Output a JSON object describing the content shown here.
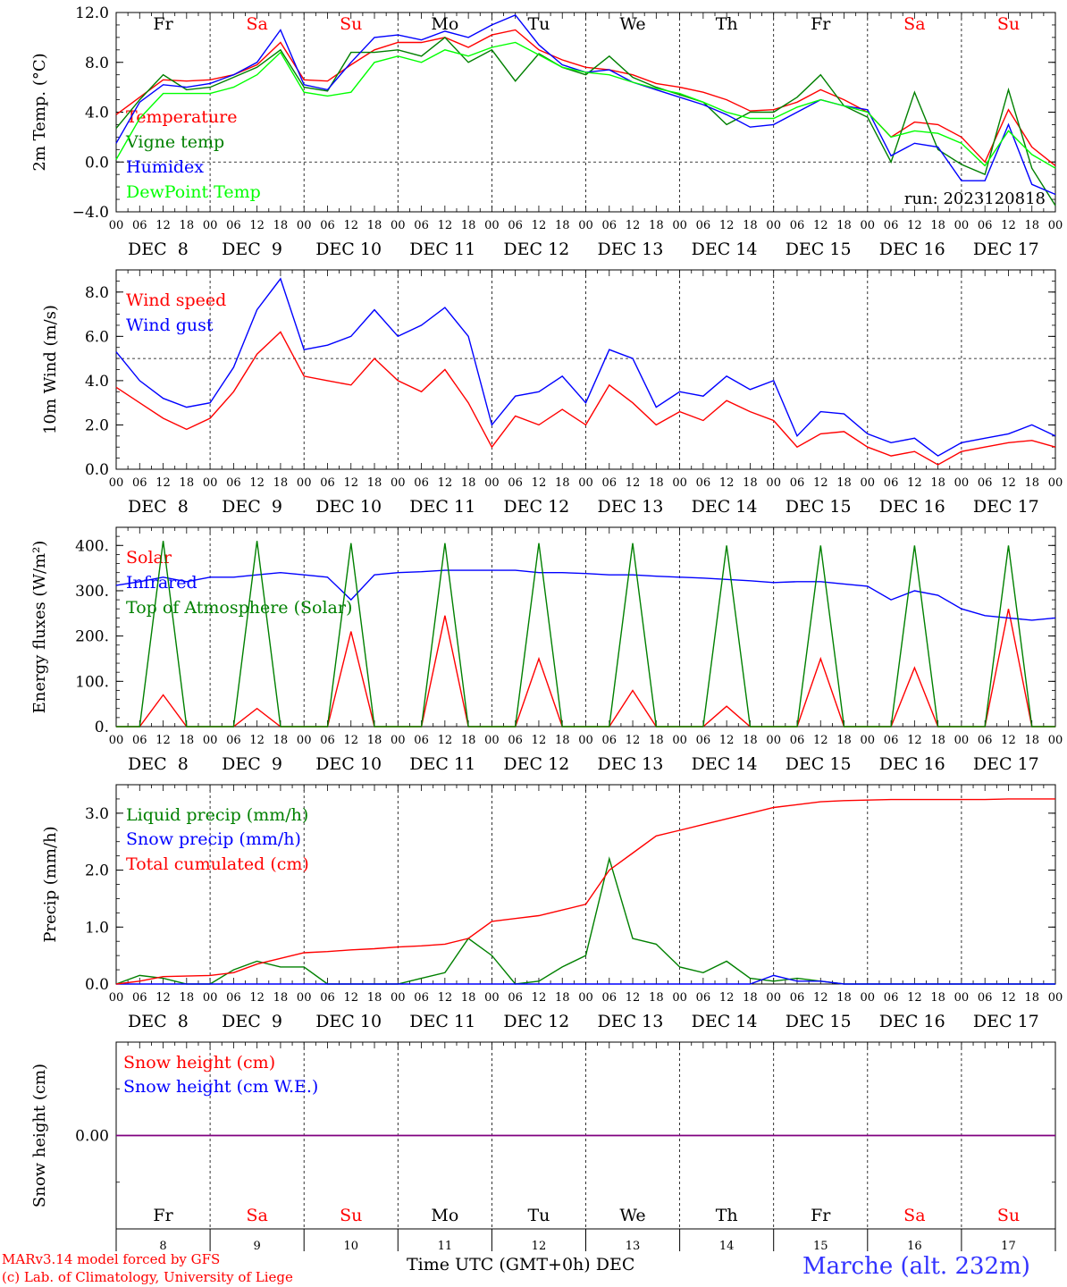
{
  "run_label": "run: 2023120818",
  "days": {
    "labels": [
      "Fr",
      "Sa",
      "Su",
      "Mo",
      "Tu",
      "We",
      "Th",
      "Fr",
      "Sa",
      "Su"
    ],
    "dates": [
      "DEC  8",
      "DEC  9",
      "DEC 10",
      "DEC 11",
      "DEC 12",
      "DEC 13",
      "DEC 14",
      "DEC 15",
      "DEC 16",
      "DEC 17"
    ],
    "numbers": [
      "8",
      "9",
      "10",
      "11",
      "12",
      "13",
      "14",
      "15",
      "16",
      "17"
    ],
    "weekend_color": "#ff0000",
    "weekday_color": "#000000",
    "hour_ticks": [
      "00",
      "06",
      "12",
      "18"
    ],
    "end_tick": "00"
  },
  "chart_data": [
    {
      "type": "line",
      "id": "temperature",
      "ylabel": "2m Temp. (°C)",
      "ylim": [
        -4,
        12
      ],
      "yticks": [
        "12.0",
        "8.0",
        "4.0",
        "0.0",
        "−4.0"
      ],
      "ytick_values": [
        12,
        8,
        4,
        0,
        -4
      ],
      "reference_line": 0,
      "x": [
        0,
        6,
        12,
        18,
        24,
        30,
        36,
        42,
        48,
        54,
        60,
        66,
        72,
        78,
        84,
        90,
        96,
        102,
        108,
        114,
        120,
        126,
        132,
        138,
        144,
        150,
        156,
        162,
        168,
        174,
        180,
        186,
        192,
        198,
        204,
        210,
        216,
        222,
        228,
        234,
        240
      ],
      "series": [
        {
          "name": "Temperature",
          "color": "#ff0000",
          "values": [
            3.8,
            5.2,
            6.6,
            6.5,
            6.6,
            7.0,
            7.8,
            9.6,
            6.6,
            6.5,
            7.8,
            9.0,
            9.6,
            9.6,
            10.0,
            9.2,
            10.2,
            10.6,
            9.0,
            8.2,
            7.6,
            7.4,
            7.0,
            6.3,
            6.0,
            5.6,
            5.0,
            4.1,
            4.2,
            4.8,
            5.8,
            5.0,
            4.0,
            2.0,
            3.2,
            3.0,
            2.0,
            0.0,
            4.2,
            1.2,
            -0.3
          ]
        },
        {
          "name": "Vigne temp",
          "color": "#008000",
          "values": [
            2.7,
            5.0,
            7.0,
            5.8,
            6.0,
            6.8,
            7.6,
            9.0,
            6.0,
            5.7,
            8.8,
            8.8,
            9.0,
            8.5,
            10.0,
            8.0,
            9.0,
            6.5,
            8.7,
            7.6,
            7.0,
            8.5,
            6.8,
            6.0,
            5.4,
            4.8,
            3.0,
            4.0,
            4.0,
            5.2,
            7.0,
            4.5,
            3.6,
            0.0,
            5.6,
            1.0,
            -0.2,
            -1.0,
            5.8,
            -0.5,
            -3.5
          ]
        },
        {
          "name": "Humidex",
          "color": "#0000ff",
          "values": [
            1.5,
            4.8,
            6.2,
            6.0,
            6.3,
            7.0,
            8.0,
            10.6,
            6.2,
            5.8,
            8.0,
            10.0,
            10.2,
            9.8,
            10.5,
            10.0,
            11.0,
            11.8,
            9.4,
            7.8,
            7.2,
            7.4,
            6.4,
            5.8,
            5.2,
            4.6,
            3.8,
            2.8,
            3.0,
            4.0,
            5.0,
            4.5,
            4.2,
            0.5,
            1.5,
            1.2,
            -1.5,
            -1.5,
            3.0,
            -1.8,
            -2.6
          ]
        },
        {
          "name": "DewPoint Temp",
          "color": "#00ff00",
          "values": [
            0.2,
            3.5,
            5.5,
            5.5,
            5.5,
            6.0,
            7.0,
            8.8,
            5.6,
            5.3,
            5.6,
            8.0,
            8.5,
            8.0,
            9.0,
            8.5,
            9.2,
            9.6,
            8.6,
            7.6,
            7.2,
            7.0,
            6.4,
            5.9,
            5.5,
            4.8,
            4.0,
            3.5,
            3.5,
            4.4,
            5.0,
            4.5,
            4.0,
            2.0,
            2.5,
            2.3,
            1.5,
            -0.3,
            2.5,
            0.6,
            -0.5
          ]
        }
      ]
    },
    {
      "type": "line",
      "id": "wind",
      "ylabel": "10m Wind (m/s)",
      "ylim": [
        0,
        9
      ],
      "yticks": [
        "8.0",
        "6.0",
        "4.0",
        "2.0",
        "0.0"
      ],
      "ytick_values": [
        8,
        6,
        4,
        2,
        0
      ],
      "reference_line": 5,
      "x": [
        0,
        6,
        12,
        18,
        24,
        30,
        36,
        42,
        48,
        54,
        60,
        66,
        72,
        78,
        84,
        90,
        96,
        102,
        108,
        114,
        120,
        126,
        132,
        138,
        144,
        150,
        156,
        162,
        168,
        174,
        180,
        186,
        192,
        198,
        204,
        210,
        216,
        222,
        228,
        234,
        240
      ],
      "series": [
        {
          "name": "Wind speed",
          "color": "#ff0000",
          "values": [
            3.7,
            3.0,
            2.3,
            1.8,
            2.3,
            3.5,
            5.2,
            6.2,
            4.2,
            4.0,
            3.8,
            5.0,
            4.0,
            3.5,
            4.5,
            3.0,
            1.0,
            2.4,
            2.0,
            2.7,
            2.0,
            3.8,
            3.0,
            2.0,
            2.6,
            2.2,
            3.1,
            2.6,
            2.2,
            1.0,
            1.6,
            1.7,
            1.0,
            0.6,
            0.8,
            0.2,
            0.8,
            1.0,
            1.2,
            1.3,
            1.0
          ]
        },
        {
          "name": "Wind gust",
          "color": "#0000ff",
          "values": [
            5.3,
            4.0,
            3.2,
            2.8,
            3.0,
            4.6,
            7.2,
            8.6,
            5.4,
            5.6,
            6.0,
            7.2,
            6.0,
            6.5,
            7.3,
            6.0,
            2.0,
            3.3,
            3.5,
            4.2,
            3.0,
            5.4,
            5.0,
            2.8,
            3.5,
            3.3,
            4.2,
            3.6,
            4.0,
            1.5,
            2.6,
            2.5,
            1.6,
            1.2,
            1.4,
            0.6,
            1.2,
            1.4,
            1.6,
            2.0,
            1.5
          ]
        }
      ]
    },
    {
      "type": "line",
      "id": "energy",
      "ylabel": "Energy fluxes (W/m²)",
      "ylim": [
        0,
        440
      ],
      "yticks": [
        "400.",
        "300.",
        "200.",
        "100.",
        "0."
      ],
      "ytick_values": [
        400,
        300,
        200,
        100,
        0
      ],
      "x": [
        0,
        6,
        12,
        18,
        24,
        30,
        36,
        42,
        48,
        54,
        60,
        66,
        72,
        78,
        84,
        90,
        96,
        102,
        108,
        114,
        120,
        126,
        132,
        138,
        144,
        150,
        156,
        162,
        168,
        174,
        180,
        186,
        192,
        198,
        204,
        210,
        216,
        222,
        228,
        234,
        240
      ],
      "series": [
        {
          "name": "Solar",
          "color": "#ff0000",
          "values": [
            0,
            0,
            70,
            0,
            0,
            0,
            40,
            0,
            0,
            0,
            210,
            0,
            0,
            0,
            245,
            0,
            0,
            0,
            150,
            0,
            0,
            0,
            80,
            0,
            0,
            0,
            45,
            0,
            0,
            0,
            150,
            0,
            0,
            0,
            130,
            0,
            0,
            0,
            260,
            0,
            0
          ]
        },
        {
          "name": "Infrared",
          "color": "#0000ff",
          "values": [
            312,
            320,
            330,
            320,
            330,
            330,
            335,
            340,
            335,
            330,
            280,
            335,
            340,
            342,
            345,
            345,
            345,
            345,
            340,
            340,
            338,
            335,
            335,
            332,
            330,
            328,
            325,
            322,
            318,
            320,
            320,
            315,
            310,
            280,
            300,
            290,
            260,
            245,
            240,
            235,
            240
          ]
        },
        {
          "name": "Top of Atmosphere (Solar)",
          "color": "#008000",
          "values": [
            0,
            0,
            410,
            0,
            0,
            0,
            410,
            0,
            0,
            0,
            405,
            0,
            0,
            0,
            405,
            0,
            0,
            0,
            405,
            0,
            0,
            0,
            405,
            0,
            0,
            0,
            400,
            0,
            0,
            0,
            400,
            0,
            0,
            0,
            400,
            0,
            0,
            0,
            400,
            0,
            0
          ]
        }
      ]
    },
    {
      "type": "line",
      "id": "precip",
      "ylabel": "Precip (mm/h)",
      "ylim": [
        0,
        3.5
      ],
      "yticks": [
        "3.0",
        "2.0",
        "1.0",
        "0.0"
      ],
      "ytick_values": [
        3,
        2,
        1,
        0
      ],
      "x": [
        0,
        6,
        12,
        18,
        24,
        30,
        36,
        42,
        48,
        54,
        60,
        66,
        72,
        78,
        84,
        90,
        96,
        102,
        108,
        114,
        120,
        126,
        132,
        138,
        144,
        150,
        156,
        162,
        168,
        174,
        180,
        186,
        192,
        198,
        204,
        210,
        216,
        222,
        228,
        234,
        240
      ],
      "series": [
        {
          "name": "Liquid precip (mm/h)",
          "color": "#008000",
          "values": [
            0,
            0.15,
            0.1,
            0,
            0,
            0.25,
            0.4,
            0.3,
            0.3,
            0,
            0,
            0,
            0,
            0.1,
            0.2,
            0.8,
            0.5,
            0,
            0.05,
            0.3,
            0.5,
            2.2,
            0.8,
            0.7,
            0.3,
            0.2,
            0.4,
            0.1,
            0.05,
            0.1,
            0.05,
            0,
            0,
            0,
            0,
            0,
            0,
            0,
            0,
            0,
            0
          ]
        },
        {
          "name": "Snow precip (mm/h)",
          "color": "#0000ff",
          "values": [
            0,
            0,
            0,
            0,
            0,
            0,
            0,
            0,
            0,
            0,
            0,
            0,
            0,
            0,
            0,
            0,
            0,
            0,
            0,
            0,
            0,
            0,
            0,
            0,
            0,
            0,
            0,
            0,
            0.15,
            0.05,
            0.05,
            0,
            0,
            0,
            0,
            0,
            0,
            0,
            0,
            0,
            0
          ]
        },
        {
          "name": "Total cumulated (cm)",
          "color": "#ff0000",
          "values": [
            0,
            0.05,
            0.13,
            0.14,
            0.15,
            0.2,
            0.35,
            0.45,
            0.55,
            0.57,
            0.6,
            0.62,
            0.65,
            0.67,
            0.7,
            0.8,
            1.1,
            1.15,
            1.2,
            1.3,
            1.4,
            2.0,
            2.3,
            2.6,
            2.7,
            2.8,
            2.9,
            3.0,
            3.1,
            3.15,
            3.2,
            3.22,
            3.23,
            3.24,
            3.24,
            3.24,
            3.24,
            3.24,
            3.25,
            3.25,
            3.25
          ]
        }
      ]
    },
    {
      "type": "line",
      "id": "snow",
      "ylabel": "Snow height (cm)",
      "ylim": [
        -1,
        1
      ],
      "yticks": [
        "0.00"
      ],
      "ytick_values": [
        0
      ],
      "xlabel": "Time UTC (GMT+0h) DEC",
      "x": [
        0,
        240
      ],
      "series": [
        {
          "name": "Snow height (cm)",
          "color": "#ff0000",
          "values": [
            0,
            0
          ]
        },
        {
          "name": "Snow height (cm W.E.)",
          "color": "#0000ff",
          "values": [
            0,
            0
          ]
        }
      ],
      "line_color": "#800080"
    }
  ],
  "footer": {
    "model": "MARv3.14 model forced by GFS",
    "credit": "(c) Lab. of Climatology, University of Liege",
    "station": "Marche (alt. 232m)",
    "footer_color": "#ff0000",
    "station_color": "#3333ff"
  }
}
